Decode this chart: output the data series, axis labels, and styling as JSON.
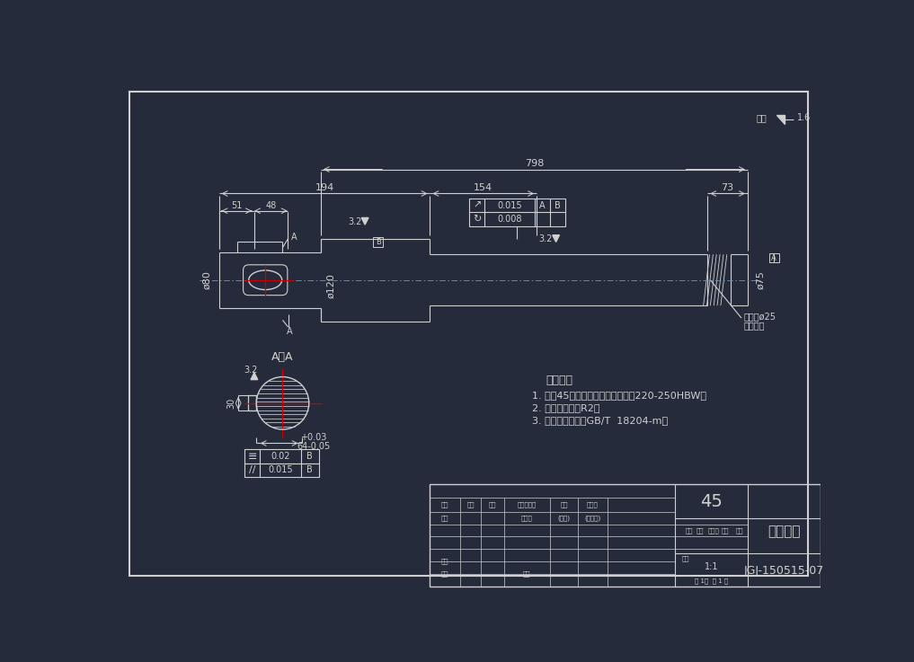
{
  "bg_color": "#252b3a",
  "line_color": "#d0d0d0",
  "red_color": "#cc0000",
  "title": "锥齿轮轴",
  "material": "45",
  "drawing_num": "JGJ-150515-07",
  "tech_req_title": "技术要求",
  "tech_req_1": "1. 材料45钢，调制处理，表面硬度220-250HBW；",
  "tech_req_2": "2. 未注圆角半径R2；",
  "tech_req_3": "3. 未注尺寸公差按GB/T  18204-m。",
  "roughness_top": "其余",
  "roughness_val": "1.6",
  "dim_798": "798",
  "dim_194": "194",
  "dim_154": "154",
  "dim_73": "73",
  "dim_51": "51",
  "dim_48": "48",
  "dim_80": "ø80",
  "dim_120": "ø120",
  "dim_75": "ø75",
  "dim_25": "锥销孔ø25",
  "dim_25_sub": "装配时作",
  "dim_32": "3.2",
  "tol_1": "0.015",
  "tol_2": "0.008",
  "tol_ref_A": "A",
  "tol_ref_B": "B",
  "section_label": "A－A",
  "dim_30": "30",
  "flatness_val": "0.02",
  "parallelism_val": "0.015",
  "tol_B": "B",
  "tb_row1": [
    "标记",
    "处数",
    "分区",
    "更改文件号",
    "签名",
    "年月日"
  ],
  "tb_row2_l": "设计",
  "tb_row2_std": "标准化",
  "tb_row2_sign": "(签名)",
  "tb_row2_date": "(年月日)",
  "tb_right_cols": [
    "阶段",
    "质量",
    "标准司",
    "重量",
    "比例"
  ],
  "tb_scale": "1:1",
  "tb_audit": "审核",
  "tb_process": "工艺",
  "tb_normalize": "量准",
  "tb_sheet": "共 1张  第 1 束"
}
